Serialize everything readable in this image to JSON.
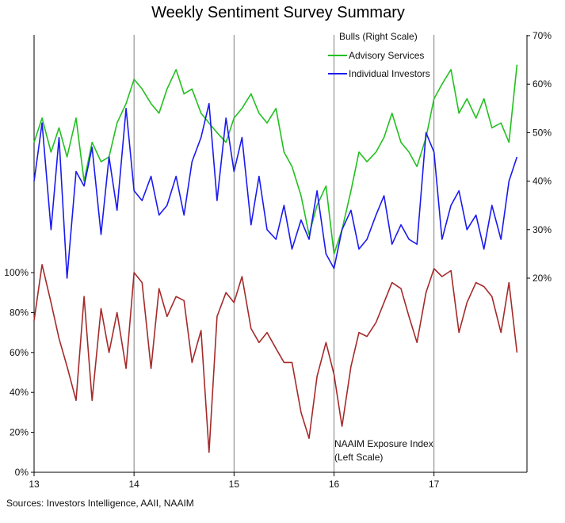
{
  "colors": {
    "advisory": "#22c01f",
    "individual": "#1a1af0",
    "naaim": "#a52a2a",
    "gridline": "#7f7f7f",
    "axis": "#000000"
  },
  "source_note": "Sources: Investors Intelligence, AAII, NAAIM",
  "chart_data": {
    "type": "line",
    "title": "Weekly Sentiment Survey Summary",
    "x_ticks": [
      "13",
      "14",
      "15",
      "16",
      "17"
    ],
    "x_range": [
      2013.0,
      2017.93
    ],
    "left_axis": {
      "ticks": [
        "0%",
        "20%",
        "40%",
        "60%",
        "80%",
        "100%"
      ],
      "range": [
        0,
        105
      ]
    },
    "right_axis": {
      "ticks": [
        "20%",
        "30%",
        "40%",
        "50%",
        "60%",
        "70%"
      ],
      "range": [
        20,
        70
      ]
    },
    "grid": "vertical at year boundaries",
    "legend": {
      "title": "Bulls (Right Scale)",
      "position": "top-right"
    },
    "annotation": {
      "line1": "NAAIM  Exposure Index",
      "line2": "(Left Scale)"
    },
    "series": [
      {
        "name": "Advisory Services",
        "axis": "right",
        "x": [
          2013.0,
          2013.08,
          2013.17,
          2013.25,
          2013.33,
          2013.42,
          2013.5,
          2013.58,
          2013.67,
          2013.75,
          2013.83,
          2013.92,
          2014.0,
          2014.08,
          2014.17,
          2014.25,
          2014.33,
          2014.42,
          2014.5,
          2014.58,
          2014.67,
          2014.75,
          2014.83,
          2014.92,
          2015.0,
          2015.08,
          2015.17,
          2015.25,
          2015.33,
          2015.42,
          2015.5,
          2015.58,
          2015.67,
          2015.75,
          2015.83,
          2015.92,
          2016.0,
          2016.08,
          2016.17,
          2016.25,
          2016.33,
          2016.42,
          2016.5,
          2016.58,
          2016.67,
          2016.75,
          2016.83,
          2016.92,
          2017.0,
          2017.08,
          2017.17,
          2017.25,
          2017.33,
          2017.42,
          2017.5,
          2017.58,
          2017.67,
          2017.75,
          2017.83
        ],
        "values": [
          48,
          53,
          46,
          51,
          45,
          53,
          40,
          48,
          44,
          45,
          52,
          56,
          61,
          59,
          56,
          54,
          59,
          63,
          58,
          59,
          54,
          52,
          50,
          48,
          53,
          55,
          58,
          54,
          52,
          55,
          46,
          43,
          37,
          29,
          35,
          39,
          25,
          30,
          38,
          46,
          44,
          46,
          49,
          54,
          48,
          46,
          43,
          49,
          57,
          60,
          63,
          54,
          57,
          53,
          57,
          51,
          52,
          48,
          64
        ]
      },
      {
        "name": "Individual Investors",
        "axis": "right",
        "x": [
          2013.0,
          2013.08,
          2013.17,
          2013.25,
          2013.33,
          2013.42,
          2013.5,
          2013.58,
          2013.67,
          2013.75,
          2013.83,
          2013.92,
          2014.0,
          2014.08,
          2014.17,
          2014.25,
          2014.33,
          2014.42,
          2014.5,
          2014.58,
          2014.67,
          2014.75,
          2014.83,
          2014.92,
          2015.0,
          2015.08,
          2015.17,
          2015.25,
          2015.33,
          2015.42,
          2015.5,
          2015.58,
          2015.67,
          2015.75,
          2015.83,
          2015.92,
          2016.0,
          2016.08,
          2016.17,
          2016.25,
          2016.33,
          2016.42,
          2016.5,
          2016.58,
          2016.67,
          2016.75,
          2016.83,
          2016.92,
          2017.0,
          2017.08,
          2017.17,
          2017.25,
          2017.33,
          2017.42,
          2017.5,
          2017.58,
          2017.67,
          2017.75,
          2017.83
        ],
        "values": [
          40,
          52,
          30,
          49,
          20,
          42,
          39,
          47,
          29,
          45,
          34,
          55,
          38,
          36,
          41,
          33,
          35,
          41,
          33,
          44,
          49,
          56,
          36,
          53,
          42,
          49,
          31,
          41,
          30,
          28,
          35,
          26,
          32,
          28,
          38,
          25,
          22,
          30,
          34,
          26,
          28,
          33,
          37,
          27,
          31,
          28,
          27,
          50,
          46,
          28,
          35,
          38,
          30,
          33,
          26,
          35,
          28,
          40,
          45
        ]
      },
      {
        "name": "NAAIM  Exposure Index",
        "axis": "left",
        "x": [
          2013.0,
          2013.08,
          2013.17,
          2013.25,
          2013.33,
          2013.42,
          2013.5,
          2013.58,
          2013.67,
          2013.75,
          2013.83,
          2013.92,
          2014.0,
          2014.08,
          2014.17,
          2014.25,
          2014.33,
          2014.42,
          2014.5,
          2014.58,
          2014.67,
          2014.75,
          2014.83,
          2014.92,
          2015.0,
          2015.08,
          2015.17,
          2015.25,
          2015.33,
          2015.42,
          2015.5,
          2015.58,
          2015.67,
          2015.75,
          2015.83,
          2015.92,
          2016.0,
          2016.08,
          2016.17,
          2016.25,
          2016.33,
          2016.42,
          2016.5,
          2016.58,
          2016.67,
          2016.75,
          2016.83,
          2016.92,
          2017.0,
          2017.08,
          2017.17,
          2017.25,
          2017.33,
          2017.42,
          2017.5,
          2017.58,
          2017.67,
          2017.75,
          2017.83
        ],
        "values": [
          76,
          104,
          85,
          67,
          53,
          36,
          88,
          36,
          82,
          60,
          80,
          52,
          100,
          95,
          52,
          92,
          78,
          88,
          86,
          55,
          71,
          10,
          78,
          90,
          85,
          98,
          72,
          65,
          70,
          62,
          55,
          55,
          30,
          17,
          48,
          65,
          49,
          23,
          53,
          70,
          68,
          75,
          85,
          95,
          92,
          78,
          65,
          90,
          102,
          98,
          101,
          70,
          85,
          95,
          93,
          88,
          70,
          95,
          60
        ]
      }
    ]
  }
}
